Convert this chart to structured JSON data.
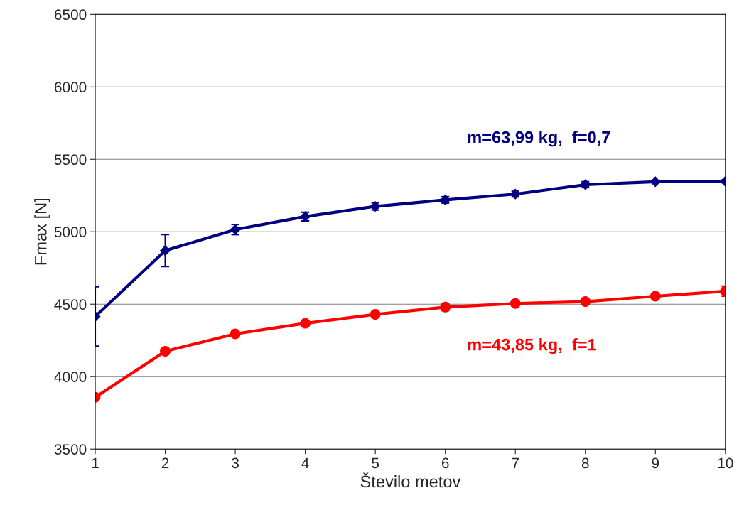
{
  "chart_data": {
    "type": "line",
    "xlabel": "Število metov",
    "ylabel": "Fmax [N]",
    "x": [
      1,
      2,
      3,
      4,
      5,
      6,
      7,
      8,
      9,
      10
    ],
    "xlim": [
      1,
      10
    ],
    "xticks": [
      1,
      2,
      3,
      4,
      5,
      6,
      7,
      8,
      9,
      10
    ],
    "ylim": [
      3500,
      6500
    ],
    "yticks": [
      3500,
      4000,
      4500,
      5000,
      5500,
      6000,
      6500
    ],
    "grid": "y",
    "legend": false,
    "series": [
      {
        "name": "m=63,99 kg,  f=0,7",
        "color": "#000080",
        "marker": "diamond",
        "values": [
          4415,
          4870,
          5015,
          5105,
          5175,
          5220,
          5260,
          5325,
          5345,
          5348
        ],
        "errors": [
          205,
          110,
          35,
          30,
          25,
          22,
          20,
          20,
          8,
          10
        ]
      },
      {
        "name": "m=43,85 kg,  f=1",
        "color": "#ff0000",
        "marker": "circle",
        "values": [
          3858,
          4175,
          4295,
          4368,
          4430,
          4480,
          4505,
          4518,
          4555,
          4590
        ],
        "errors": [
          10,
          15,
          12,
          20,
          20,
          25,
          12,
          20,
          20,
          35
        ]
      }
    ]
  }
}
